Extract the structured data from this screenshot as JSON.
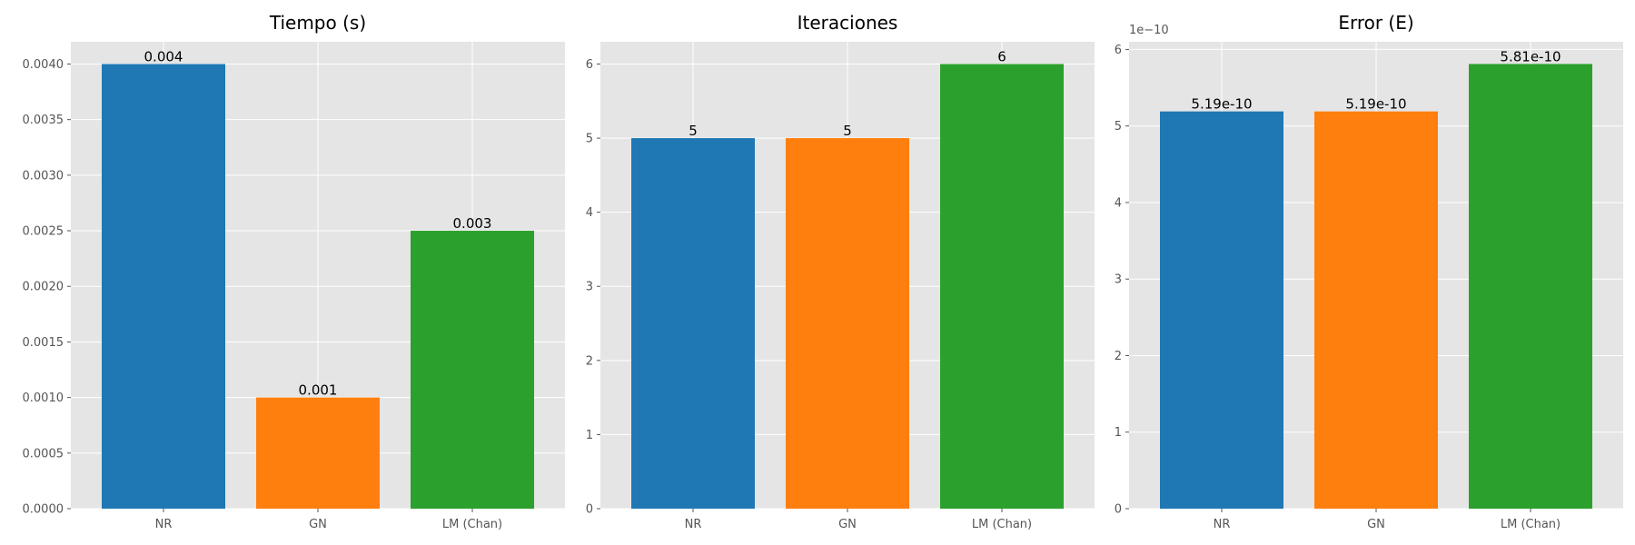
{
  "chart_data": [
    {
      "type": "bar",
      "title": "Tiempo (s)",
      "categories": [
        "NR",
        "GN",
        "LM (Chan)"
      ],
      "values": [
        0.004,
        0.001,
        0.0025
      ],
      "data_labels": [
        "0.004",
        "0.001",
        "0.003"
      ],
      "colors": [
        "#1f77b4",
        "#ff7f0e",
        "#2ca02c"
      ],
      "ylim": [
        0,
        0.0042
      ],
      "yticks": [
        0,
        0.0005,
        0.001,
        0.0015,
        0.002,
        0.0025,
        0.003,
        0.0035,
        0.004
      ],
      "ytick_labels": [
        "0.0000",
        "0.0005",
        "0.0010",
        "0.0015",
        "0.0020",
        "0.0025",
        "0.0030",
        "0.0035",
        "0.0040"
      ],
      "offset_label": "",
      "grid": true
    },
    {
      "type": "bar",
      "title": "Iteraciones",
      "categories": [
        "NR",
        "GN",
        "LM (Chan)"
      ],
      "values": [
        5,
        5,
        6
      ],
      "data_labels": [
        "5",
        "5",
        "6"
      ],
      "colors": [
        "#1f77b4",
        "#ff7f0e",
        "#2ca02c"
      ],
      "ylim": [
        0,
        6.3
      ],
      "yticks": [
        0,
        1,
        2,
        3,
        4,
        5,
        6
      ],
      "ytick_labels": [
        "0",
        "1",
        "2",
        "3",
        "4",
        "5",
        "6"
      ],
      "offset_label": "",
      "grid": true
    },
    {
      "type": "bar",
      "title": "Error (E)",
      "categories": [
        "NR",
        "GN",
        "LM (Chan)"
      ],
      "values": [
        5.19,
        5.19,
        5.81
      ],
      "data_labels": [
        "5.19e-10",
        "5.19e-10",
        "5.81e-10"
      ],
      "colors": [
        "#1f77b4",
        "#ff7f0e",
        "#2ca02c"
      ],
      "ylim": [
        0,
        6.1
      ],
      "yticks": [
        0,
        1,
        2,
        3,
        4,
        5,
        6
      ],
      "ytick_labels": [
        "0",
        "1",
        "2",
        "3",
        "4",
        "5",
        "6"
      ],
      "offset_label": "1e−10",
      "grid": true
    }
  ]
}
